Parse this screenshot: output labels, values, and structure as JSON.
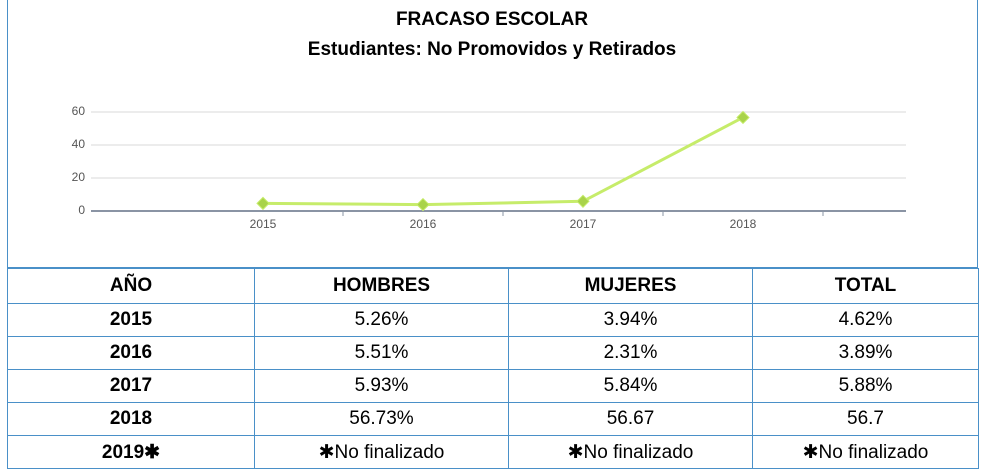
{
  "chart_data": {
    "type": "line",
    "title": "FRACASO ESCOLAR",
    "subtitle": "Estudiantes: No Promovidos y Retirados",
    "categories": [
      "2015",
      "2016",
      "2017",
      "2018"
    ],
    "series": [
      {
        "values": [
          4.62,
          3.89,
          5.88,
          56.7
        ],
        "color": "#c6ec6a"
      }
    ],
    "ylim": [
      0,
      60
    ],
    "yticks": [
      0,
      20,
      40,
      60
    ],
    "grid": true
  },
  "table": {
    "header": [
      "AÑO",
      "HOMBRES",
      "MUJERES",
      "TOTAL"
    ],
    "rows": [
      [
        "2015",
        "5.26%",
        "3.94%",
        "4.62%"
      ],
      [
        "2016",
        "5.51%",
        "2.31%",
        "3.89%"
      ],
      [
        "2017",
        "5.93%",
        "5.84%",
        "5.88%"
      ],
      [
        "2018",
        "56.73%",
        "56.67",
        "56.7"
      ],
      [
        "2019✱",
        "✱No finalizado",
        "✱No finalizado",
        "✱No finalizado"
      ]
    ]
  }
}
